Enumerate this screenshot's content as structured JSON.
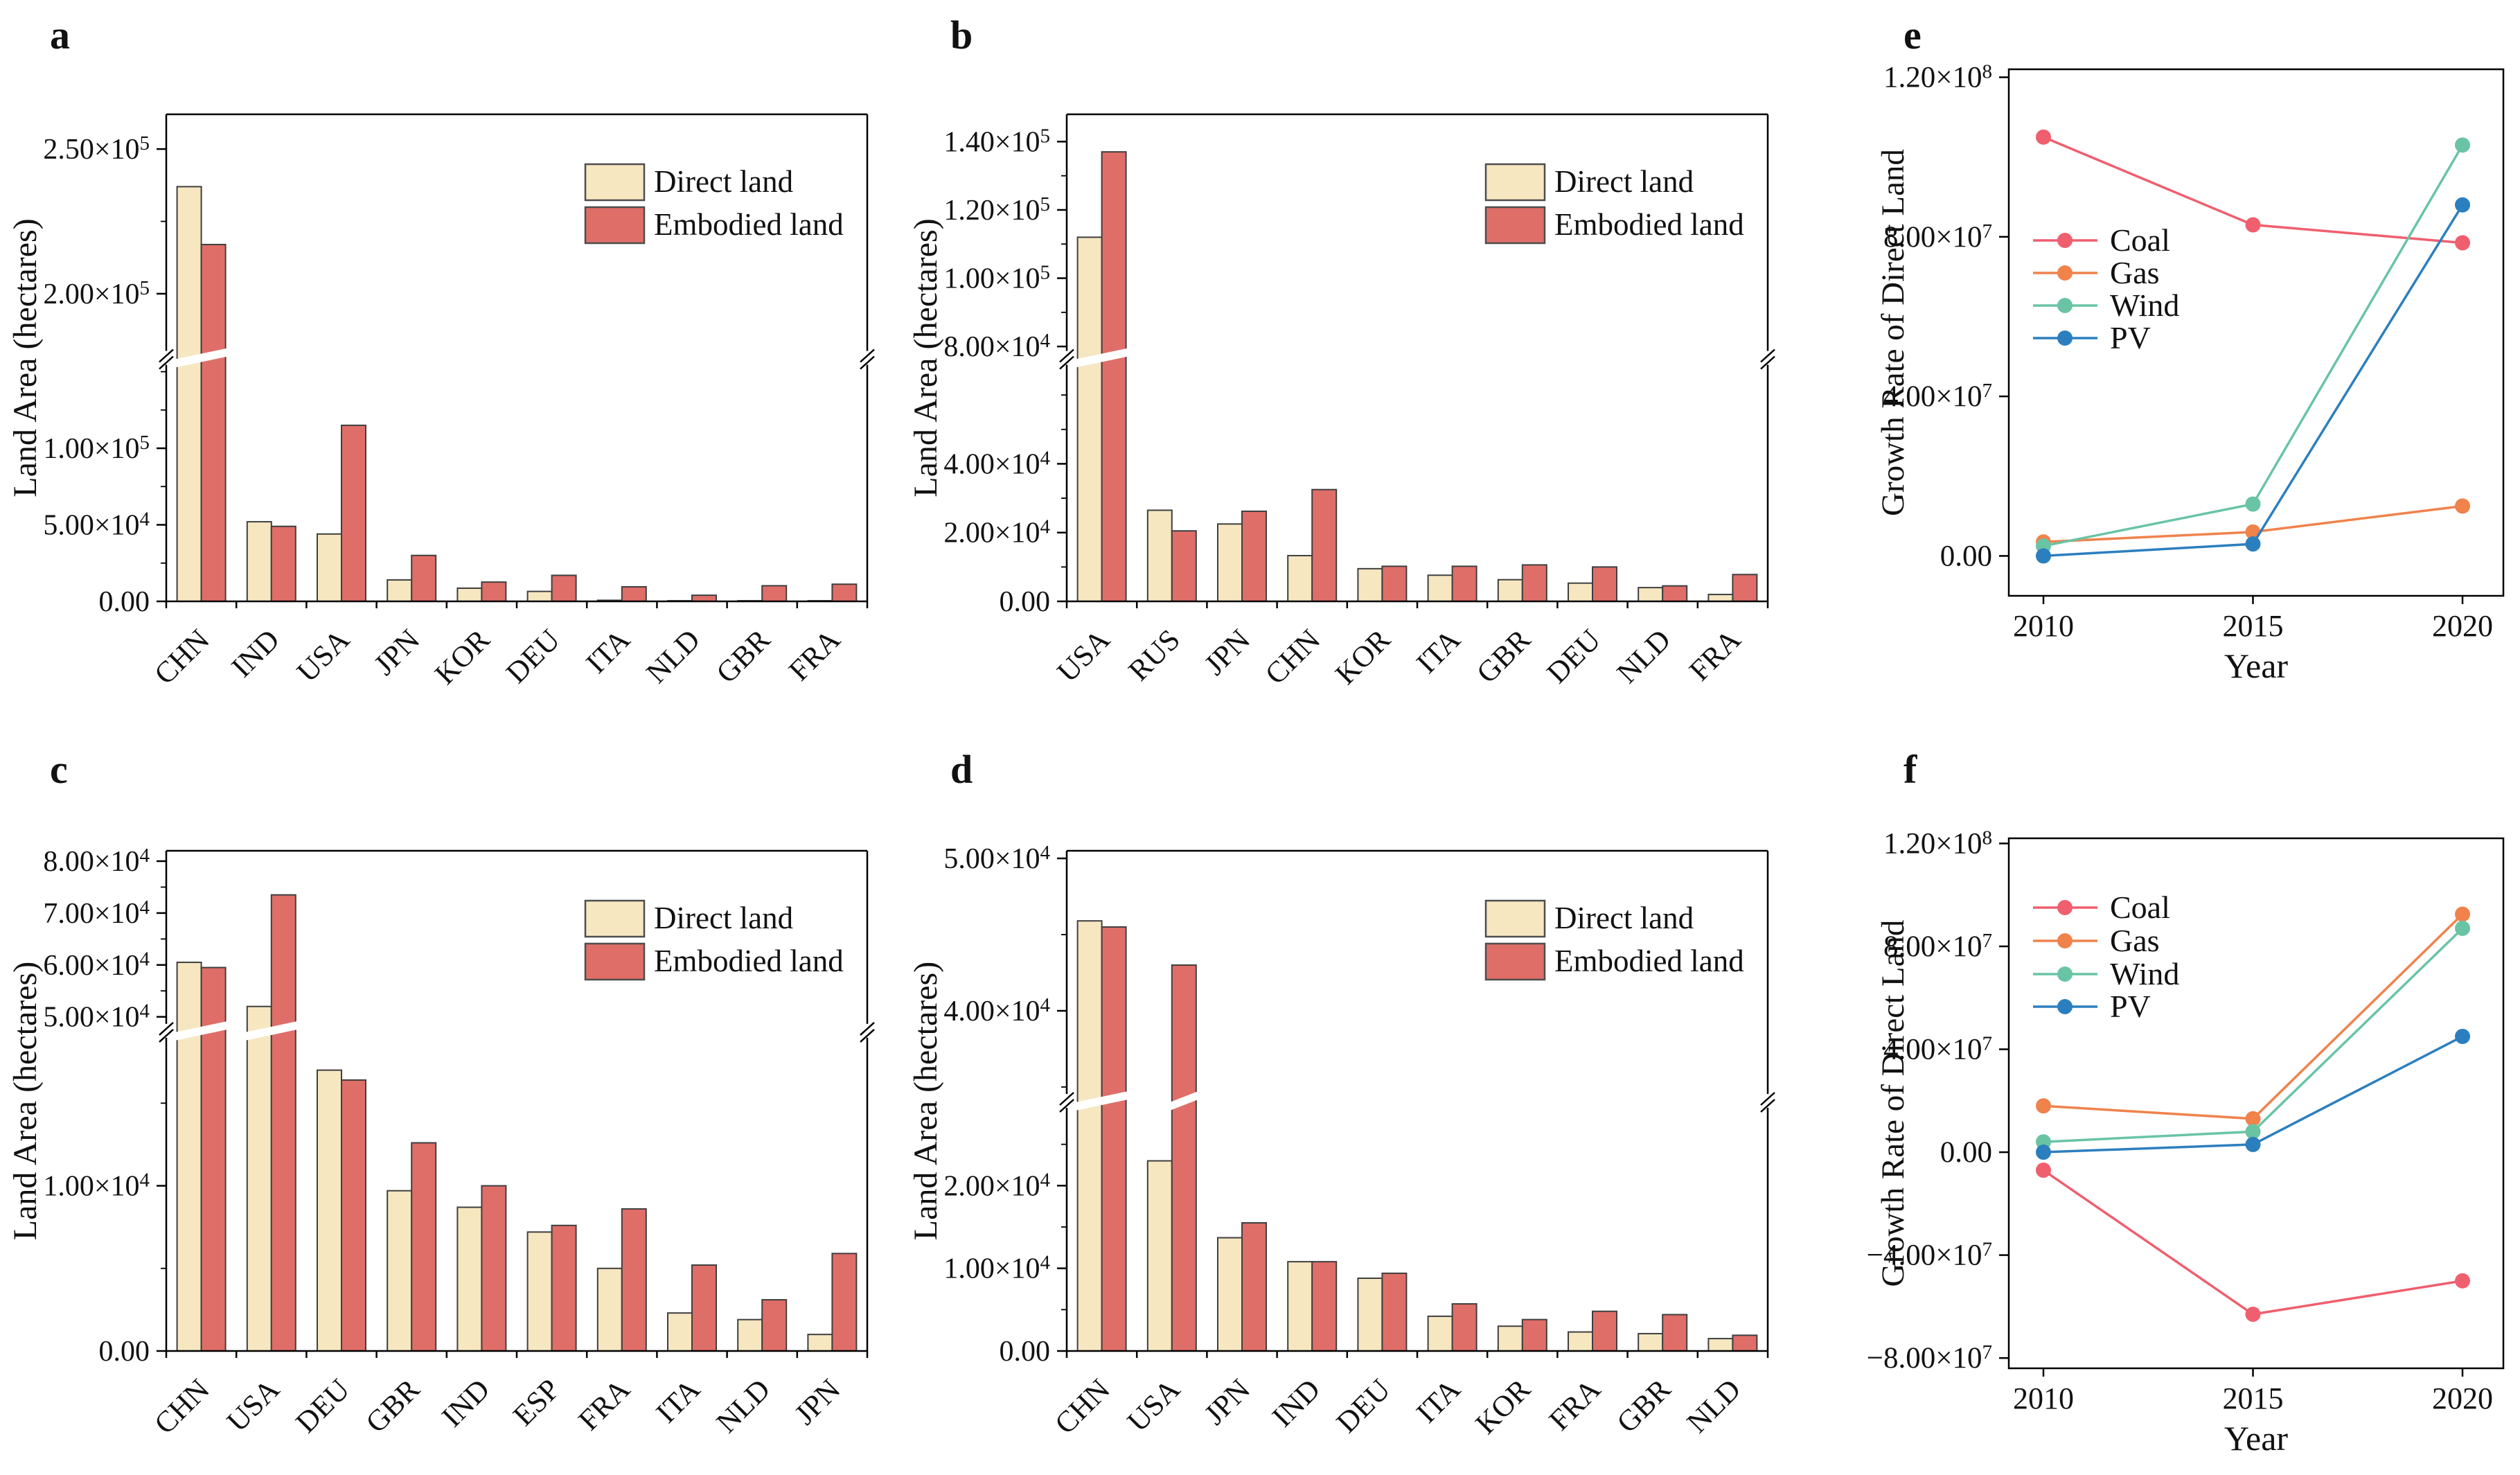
{
  "figure": {
    "background": "#ffffff"
  },
  "colors": {
    "direct": "#F6E7C1",
    "embodied": "#DF6E69",
    "bar_stroke": "#3F3F3F",
    "axis": "#000000",
    "coal": "#EF5F6E",
    "gas": "#F0824C",
    "wind": "#69C4A4",
    "pv": "#2C7FBE"
  },
  "chart_data": [
    {
      "id": "a",
      "panel_label": "a",
      "type": "bar",
      "ylabel": "Land Area (hectares)",
      "categories": [
        "CHN",
        "IND",
        "USA",
        "JPN",
        "KOR",
        "DEU",
        "ITA",
        "NLD",
        "GBR",
        "FRA"
      ],
      "series": [
        {
          "name": "Direct land",
          "color": "direct",
          "values": [
            237000,
            52000,
            44000,
            14000,
            8600,
            6500,
            700,
            400,
            400,
            400
          ]
        },
        {
          "name": "Embodied land",
          "color": "embodied",
          "values": [
            217000,
            49000,
            115000,
            30000,
            12600,
            17000,
            9500,
            4000,
            10200,
            11200
          ]
        }
      ],
      "broken_axis": {
        "lower": [
          0,
          155000
        ],
        "upper": [
          180000,
          262000
        ],
        "break_frac": 0.5
      },
      "yticks_lower": [
        {
          "v": 0,
          "l": "0.00"
        },
        {
          "v": 50000,
          "l": "5.00×10^4"
        },
        {
          "v": 100000,
          "l": "1.00×10^5"
        }
      ],
      "yticks_upper": [
        {
          "v": 200000,
          "l": "2.00×10^5"
        },
        {
          "v": 250000,
          "l": "2.50×10^5"
        }
      ],
      "minor_step": 25000,
      "legend_position": "upper-right"
    },
    {
      "id": "b",
      "panel_label": "b",
      "type": "bar",
      "ylabel": "Land Area (hectares)",
      "categories": [
        "USA",
        "RUS",
        "JPN",
        "CHN",
        "KOR",
        "ITA",
        "GBR",
        "DEU",
        "NLD",
        "FRA"
      ],
      "series": [
        {
          "name": "Direct land",
          "color": "direct",
          "values": [
            112000,
            26500,
            22500,
            13300,
            9500,
            7600,
            6300,
            5300,
            4000,
            2000
          ]
        },
        {
          "name": "Embodied land",
          "color": "embodied",
          "values": [
            137000,
            20500,
            26200,
            32500,
            10200,
            10200,
            10600,
            10000,
            4500,
            7800
          ]
        }
      ],
      "broken_axis": {
        "lower": [
          0,
          69000
        ],
        "upper": [
          78500,
          148000
        ],
        "break_frac": 0.5
      },
      "yticks_lower": [
        {
          "v": 0,
          "l": "0.00"
        },
        {
          "v": 20000,
          "l": "2.00×10^4"
        },
        {
          "v": 40000,
          "l": "4.00×10^4"
        }
      ],
      "yticks_upper": [
        {
          "v": 80000,
          "l": "8.00×10^4"
        },
        {
          "v": 100000,
          "l": "1.00×10^5"
        },
        {
          "v": 120000,
          "l": "1.20×10^5"
        },
        {
          "v": 140000,
          "l": "1.40×10^5"
        }
      ],
      "minor_step": 10000,
      "legend_position": "upper-right"
    },
    {
      "id": "c",
      "panel_label": "c",
      "type": "bar",
      "ylabel": "Land Area (hectares)",
      "categories": [
        "CHN",
        "USA",
        "DEU",
        "GBR",
        "IND",
        "ESP",
        "FRA",
        "ITA",
        "NLD",
        "JPN"
      ],
      "series": [
        {
          "name": "Direct land",
          "color": "direct",
          "values": [
            60500,
            52000,
            17000,
            9700,
            8700,
            7200,
            5000,
            2300,
            1900,
            1000
          ]
        },
        {
          "name": "Embodied land",
          "color": "embodied",
          "values": [
            59500,
            73500,
            16400,
            12600,
            10000,
            7600,
            8600,
            5200,
            3100,
            5900
          ]
        }
      ],
      "broken_axis": {
        "lower": [
          0,
          19000
        ],
        "upper": [
          48500,
          82000
        ],
        "break_frac": 0.36
      },
      "yticks_lower": [
        {
          "v": 0,
          "l": "0.00"
        },
        {
          "v": 10000,
          "l": "1.00×10^4"
        }
      ],
      "yticks_upper": [
        {
          "v": 50000,
          "l": "5.00×10^4"
        },
        {
          "v": 60000,
          "l": "6.00×10^4"
        },
        {
          "v": 70000,
          "l": "7.00×10^4"
        },
        {
          "v": 80000,
          "l": "8.00×10^4"
        }
      ],
      "minor_step": 5000,
      "legend_position": "upper-right"
    },
    {
      "id": "d",
      "panel_label": "d",
      "type": "bar",
      "ylabel": "Land Area (hectares)",
      "categories": [
        "CHN",
        "USA",
        "JPN",
        "IND",
        "DEU",
        "ITA",
        "KOR",
        "FRA",
        "GBR",
        "NLD"
      ],
      "series": [
        {
          "name": "Direct land",
          "color": "direct",
          "values": [
            45900,
            23000,
            13700,
            10800,
            8800,
            4200,
            3000,
            2300,
            2100,
            1500
          ]
        },
        {
          "name": "Embodied land",
          "color": "embodied",
          "values": [
            45500,
            43000,
            15500,
            10800,
            9400,
            5700,
            3800,
            4800,
            4400,
            1900
          ]
        }
      ],
      "broken_axis": {
        "lower": [
          0,
          29500
        ],
        "upper": [
          34500,
          50500
        ],
        "break_frac": 0.5
      },
      "yticks_lower": [
        {
          "v": 0,
          "l": "0.00"
        },
        {
          "v": 10000,
          "l": "1.00×10^4"
        },
        {
          "v": 20000,
          "l": "2.00×10^4"
        }
      ],
      "yticks_upper": [
        {
          "v": 40000,
          "l": "4.00×10^4"
        },
        {
          "v": 50000,
          "l": "5.00×10^4"
        }
      ],
      "minor_step": 5000,
      "legend_position": "upper-right"
    },
    {
      "id": "e",
      "panel_label": "e",
      "type": "line",
      "ylabel": "Growth Rate of Direct Land",
      "xlabel": "Year",
      "x": [
        2010,
        2015,
        2020
      ],
      "series": [
        {
          "name": "Coal",
          "color": "coal",
          "values": [
            105000000,
            83000000,
            78500000
          ]
        },
        {
          "name": "Gas",
          "color": "gas",
          "values": [
            3500000,
            6000000,
            12500000
          ]
        },
        {
          "name": "Wind",
          "color": "wind",
          "values": [
            2500000,
            13000000,
            103000000
          ]
        },
        {
          "name": "PV",
          "color": "pv",
          "values": [
            0,
            3000000,
            88000000
          ]
        }
      ],
      "ylim": [
        -10000000,
        122000000
      ],
      "yticks": [
        {
          "v": 0,
          "l": "0.00"
        },
        {
          "v": 40000000,
          "l": "4.00×10^7"
        },
        {
          "v": 80000000,
          "l": "8.00×10^7"
        },
        {
          "v": 120000000,
          "l": "1.20×10^8"
        }
      ],
      "legend_position": "middle-left"
    },
    {
      "id": "f",
      "panel_label": "f",
      "type": "line",
      "ylabel": "Growth Rate of Direct Land",
      "xlabel": "Year",
      "x": [
        2010,
        2015,
        2020
      ],
      "series": [
        {
          "name": "Coal",
          "color": "coal",
          "values": [
            -7000000,
            -63000000,
            -50000000
          ]
        },
        {
          "name": "Gas",
          "color": "gas",
          "values": [
            18000000,
            13000000,
            92500000
          ]
        },
        {
          "name": "Wind",
          "color": "wind",
          "values": [
            4000000,
            8000000,
            87000000
          ]
        },
        {
          "name": "PV",
          "color": "pv",
          "values": [
            0,
            3000000,
            45000000
          ]
        }
      ],
      "ylim": [
        -84000000,
        122000000
      ],
      "yticks": [
        {
          "v": -80000000,
          "l": "−8.00×10^7"
        },
        {
          "v": -40000000,
          "l": "−4.00×10^7"
        },
        {
          "v": 0,
          "l": "0.00"
        },
        {
          "v": 40000000,
          "l": "4.00×10^7"
        },
        {
          "v": 80000000,
          "l": "8.00×10^7"
        },
        {
          "v": 120000000,
          "l": "1.20×10^8"
        }
      ],
      "legend_position": "upper-left"
    }
  ]
}
